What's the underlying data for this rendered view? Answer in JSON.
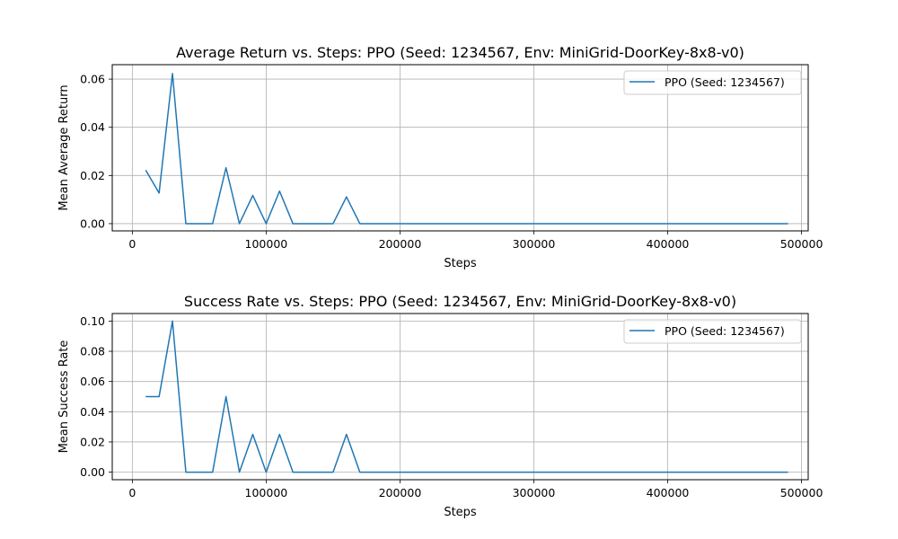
{
  "line_color": "#1f77b4",
  "chart_data": [
    {
      "type": "line",
      "title": "Average Return vs. Steps: PPO (Seed: 1234567, Env: MiniGrid-DoorKey-8x8-v0)",
      "xlabel": "Steps",
      "ylabel": "Mean Average Return",
      "xlim": [
        -15000,
        505000
      ],
      "ylim": [
        -0.003,
        0.066
      ],
      "xticks": [
        0,
        100000,
        200000,
        300000,
        400000,
        500000
      ],
      "xtick_labels": [
        "0",
        "100000",
        "200000",
        "300000",
        "400000",
        "500000"
      ],
      "yticks": [
        0.0,
        0.02,
        0.04,
        0.06
      ],
      "ytick_labels": [
        "0.00",
        "0.02",
        "0.04",
        "0.06"
      ],
      "grid": true,
      "legend": "top-right",
      "x": [
        10000,
        20000,
        30000,
        40000,
        50000,
        60000,
        70000,
        80000,
        90000,
        100000,
        110000,
        120000,
        130000,
        140000,
        150000,
        160000,
        170000,
        180000,
        190000,
        200000,
        210000,
        220000,
        230000,
        240000,
        250000,
        260000,
        270000,
        280000,
        290000,
        300000,
        310000,
        320000,
        330000,
        340000,
        350000,
        360000,
        370000,
        380000,
        390000,
        400000,
        410000,
        420000,
        430000,
        440000,
        450000,
        460000,
        470000,
        480000,
        490000
      ],
      "series": [
        {
          "name": "PPO (Seed: 1234567)",
          "values": [
            0.0222,
            0.0127,
            0.0623,
            0,
            0,
            0,
            0.0232,
            0,
            0.0117,
            0,
            0.0135,
            0,
            0,
            0,
            0,
            0.0111,
            0,
            0,
            0,
            0,
            0,
            0,
            0,
            0,
            0,
            0,
            0,
            0,
            0,
            0,
            0,
            0,
            0,
            0,
            0,
            0,
            0,
            0,
            0,
            0,
            0,
            0,
            0,
            0,
            0,
            0,
            0,
            0,
            0
          ]
        }
      ]
    },
    {
      "type": "line",
      "title": "Success Rate vs. Steps: PPO (Seed: 1234567, Env: MiniGrid-DoorKey-8x8-v0)",
      "xlabel": "Steps",
      "ylabel": "Mean Success Rate",
      "xlim": [
        -15000,
        505000
      ],
      "ylim": [
        -0.005,
        0.105
      ],
      "xticks": [
        0,
        100000,
        200000,
        300000,
        400000,
        500000
      ],
      "xtick_labels": [
        "0",
        "100000",
        "200000",
        "300000",
        "400000",
        "500000"
      ],
      "yticks": [
        0.0,
        0.02,
        0.04,
        0.06,
        0.08,
        0.1
      ],
      "ytick_labels": [
        "0.00",
        "0.02",
        "0.04",
        "0.06",
        "0.08",
        "0.10"
      ],
      "grid": true,
      "legend": "top-right",
      "x": [
        10000,
        20000,
        30000,
        40000,
        50000,
        60000,
        70000,
        80000,
        90000,
        100000,
        110000,
        120000,
        130000,
        140000,
        150000,
        160000,
        170000,
        180000,
        190000,
        200000,
        210000,
        220000,
        230000,
        240000,
        250000,
        260000,
        270000,
        280000,
        290000,
        300000,
        310000,
        320000,
        330000,
        340000,
        350000,
        360000,
        370000,
        380000,
        390000,
        400000,
        410000,
        420000,
        430000,
        440000,
        450000,
        460000,
        470000,
        480000,
        490000
      ],
      "series": [
        {
          "name": "PPO (Seed: 1234567)",
          "values": [
            0.05,
            0.05,
            0.1,
            0,
            0,
            0,
            0.05,
            0,
            0.025,
            0,
            0.025,
            0,
            0,
            0,
            0,
            0.025,
            0,
            0,
            0,
            0,
            0,
            0,
            0,
            0,
            0,
            0,
            0,
            0,
            0,
            0,
            0,
            0,
            0,
            0,
            0,
            0,
            0,
            0,
            0,
            0,
            0,
            0,
            0,
            0,
            0,
            0,
            0,
            0,
            0
          ]
        }
      ]
    }
  ]
}
